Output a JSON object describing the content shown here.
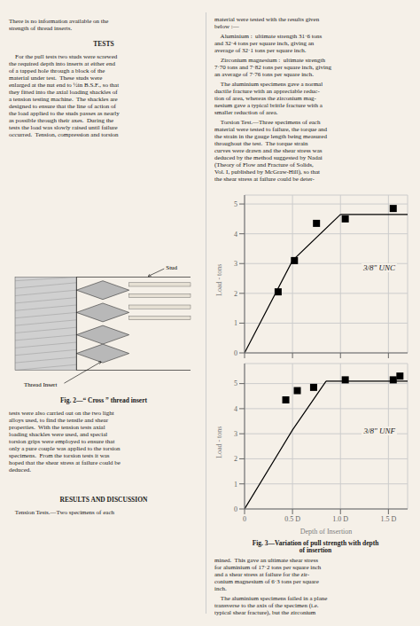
{
  "background": "#f5f0e8",
  "text_color": "#1a1a1a",
  "annotations": {
    "left": [
      {
        "text": "There is no information available on the\nstrength of thread inserts.",
        "style": "body"
      },
      {
        "text": "TESTS",
        "style": "heading"
      },
      {
        "text": "    For the pull tests two studs were screwed\nthe required depth into inserts at either end\nof a tapped hole through a block of the\nmaterial under test.  These studs were\nenlarged at the nut end to ½in B.S.F., so that\nthey fitted into the axial loading shackles of\na tension testing machine.  The shackles are\ndesigned to ensure that the line of action of\nthe load applied to the studs passes as nearly\nas possible through their axes.  During the\ntests the load was slowly raised until failure\noccurred.  Tension, compression and torsion",
        "style": "body"
      },
      {
        "text": "Fig. 2—“ Cross ” thread insert",
        "style": "caption"
      },
      {
        "text": "tests were also carried out on the two light\nalloys used, to find the tensile and shear\nproperties.  With the tension tests axial\nloading shackles were used, and special\ntorsion grips were employed to ensure that\nonly a pure couple was applied to the torsion\nspecimens.  From the torsion tests it was\nhoped that the shear stress at failure could be\ndeduced.",
        "style": "body"
      },
      {
        "text": "RESULTS AND DISCUSSION",
        "style": "heading"
      },
      {
        "text": "    Tension Tests.—Two specimens of each",
        "style": "body"
      }
    ],
    "right_top": [
      {
        "text": "material were tested with the results given\nbelow :—",
        "style": "body"
      },
      {
        "text": "    Aluminium :  ultimate strength 31·6 tons\nand 32·4 tons per square inch, giving an\naverage of 32·1 tons per square inch.",
        "style": "body"
      },
      {
        "text": "    Zirconium magnesium :  ultimate strength\n7·70 tons and 7·82 tons per square inch, giving\nan average of 7·76 tons per square inch.",
        "style": "body"
      },
      {
        "text": "    The aluminium specimens gave a normal\nductile fracture with an appreciable reduc-\ntion of area, whereas the zirconium mag-\nnesium gave a typical brittle fracture with a\nsmaller reduction of area.",
        "style": "body"
      },
      {
        "text": "    Torsion Test.—Three specimens of each\nmaterial were tested to failure, the torque and\nthe strain in the gauge length being measured\nthroughout the test.  The torque strain\ncurves were drawn and the shear stress was\ndeduced by the method suggested by Nadai\n(Theory of Flow and Fracture of Solids,\nVol. I, published by McGraw-Hill), so that\nthe shear stress at failure could be deter-",
        "style": "body"
      }
    ],
    "right_bottom": [
      {
        "text": "Fig. 3—Variation of pull strength with depth\nof insertion",
        "style": "caption"
      },
      {
        "text": "mined.  This gave an ultimate shear stress\nfor aluminium of 17·2 tons per square inch\nand a shear stress at failure for the zir-\nconium magnesium of 6·3 tons per square\ninch.",
        "style": "body"
      },
      {
        "text": "    The aluminium specimens failed in a plane\ntransverse to the axis of the specimen (i.e.\ntypical shear fracture), but the zirconium",
        "style": "body"
      }
    ],
    "diagram": [
      "Stud",
      "Thread Insert"
    ]
  },
  "chart_data": [
    {
      "type": "line",
      "title": "3/8\" UNC",
      "ylabel": "Load - tons",
      "xlim": [
        0,
        1.7
      ],
      "ylim": [
        0,
        5.3
      ],
      "xticks": [
        0,
        0.5,
        1.0,
        1.5
      ],
      "yticks": [
        0,
        1,
        2,
        3,
        4,
        5
      ],
      "grid": true,
      "tick_labels": "y",
      "series": [
        {
          "type": "line",
          "color": "#000000",
          "x": [
            0,
            0.5,
            1.0
          ],
          "values": [
            0,
            3.1,
            4.65
          ]
        },
        {
          "type": "line",
          "color": "#000000",
          "x": [
            1.0,
            1.7
          ],
          "values": [
            4.65,
            4.65
          ]
        },
        {
          "type": "scatter",
          "color": "#000000",
          "marker": "square",
          "x": [
            0.35,
            0.52,
            0.75,
            1.05,
            1.55
          ],
          "values": [
            2.05,
            3.1,
            4.35,
            4.5,
            4.85
          ]
        }
      ]
    },
    {
      "type": "line",
      "title": "3/8\" UNF",
      "ylabel": "Load - tons",
      "xlabel": "Depth of Insertion",
      "xlim": [
        0,
        1.7
      ],
      "ylim": [
        0,
        5.8
      ],
      "xticks": [
        0,
        {
          "value": 0.5,
          "label": "0.5 D"
        },
        {
          "value": 1.0,
          "label": "1.0 D"
        },
        {
          "value": 1.5,
          "label": "1.5 D"
        }
      ],
      "yticks": [
        0,
        1,
        2,
        3,
        4,
        5
      ],
      "grid": true,
      "series": [
        {
          "type": "line",
          "color": "#000000",
          "x": [
            0,
            0.5,
            0.85
          ],
          "values": [
            0,
            3.15,
            5.1
          ]
        },
        {
          "type": "line",
          "color": "#000000",
          "x": [
            0.85,
            1.7
          ],
          "values": [
            5.1,
            5.1
          ]
        },
        {
          "type": "scatter",
          "color": "#000000",
          "marker": "square",
          "x": [
            0.43,
            0.55,
            0.72,
            1.05,
            1.55,
            1.62
          ],
          "values": [
            4.35,
            4.72,
            4.85,
            5.15,
            5.15,
            5.3
          ]
        }
      ]
    }
  ]
}
